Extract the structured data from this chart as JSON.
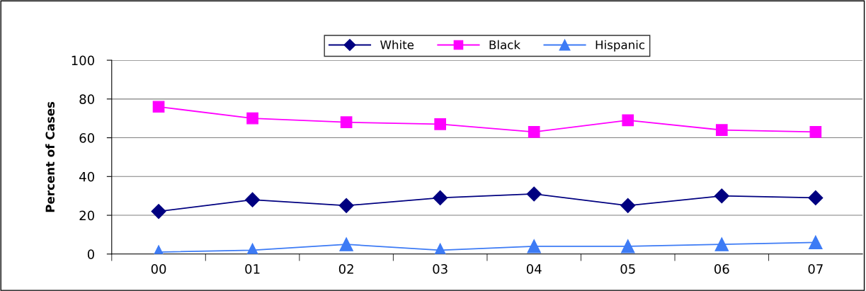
{
  "chart_data": {
    "type": "line",
    "ylabel": "Percent of Cases",
    "categories": [
      "00",
      "01",
      "02",
      "03",
      "04",
      "05",
      "06",
      "07"
    ],
    "series": [
      {
        "name": "White",
        "color": "#000080",
        "marker": "diamond",
        "values": [
          22,
          28,
          25,
          29,
          31,
          25,
          30,
          29
        ]
      },
      {
        "name": "Black",
        "color": "#ff00ff",
        "marker": "square",
        "values": [
          76,
          70,
          68,
          67,
          63,
          69,
          64,
          63
        ]
      },
      {
        "name": "Hispanic",
        "color": "#3d7bf5",
        "marker": "triangle",
        "values": [
          1,
          2,
          5,
          2,
          4,
          4,
          5,
          6
        ]
      }
    ],
    "ylim": [
      0,
      100
    ],
    "yticks": [
      0,
      20,
      40,
      60,
      80,
      100
    ],
    "grid": "y",
    "legend": "top"
  }
}
